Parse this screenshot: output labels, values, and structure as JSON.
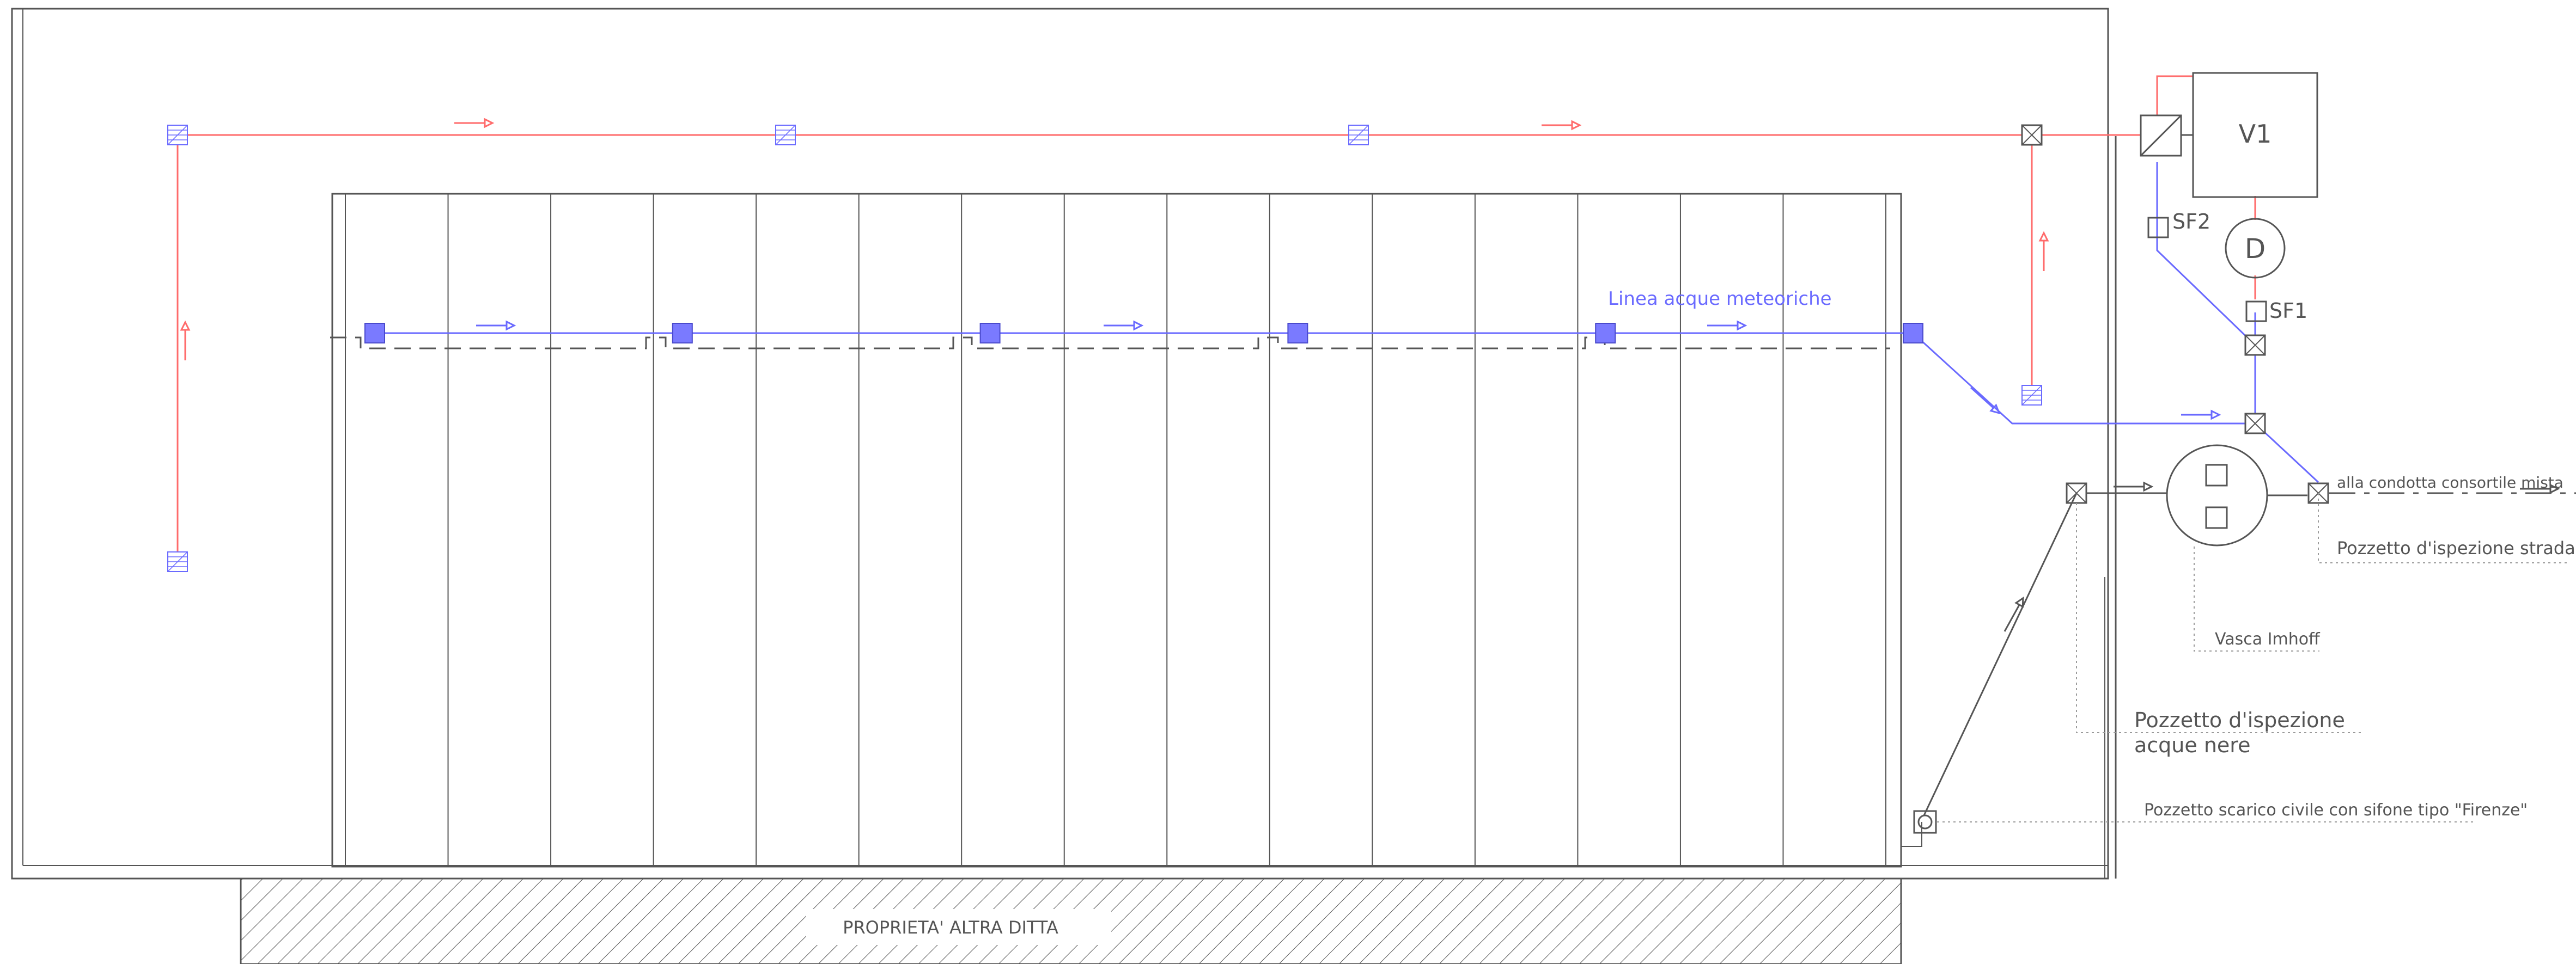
{
  "drawing": {
    "labels": {
      "stormwater_line": "Linea acque meteoriche",
      "v1": "V1",
      "d": "D",
      "sf2": "SF2",
      "sf1": "SF1",
      "to_mixed_sewer": "alla condotta consortile mista",
      "road_inspection_well": "Pozzetto d'ispezione stradale",
      "imhoff_tank": "Vasca Imhoff",
      "blackwater_well_line1": "Pozzetto d'ispezione",
      "blackwater_well_line2": "acque nere",
      "civil_discharge_well": "Pozzetto scarico civile con sifone tipo \"Firenze\"",
      "neighbour_property": "PROPRIETA' ALTRA DITTA"
    },
    "colors": {
      "stormwater": "#6a6aff",
      "stormwater_fill": "#7a7aff",
      "roof_drain": "#ff6b6b",
      "structure": "#555555",
      "label_text": "#555555",
      "leader": "#9a9a9a"
    },
    "roof_bays": 15,
    "downpipes": 6,
    "yard_drains": 5
  }
}
